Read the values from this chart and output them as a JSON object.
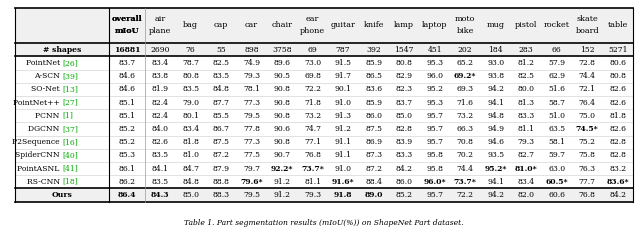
{
  "col_headers_line1": [
    "",
    "overall",
    "air",
    "bag",
    "cap",
    "car",
    "chair",
    "ear",
    "guitar",
    "knife",
    "lamp",
    "laptop",
    "moto",
    "mug",
    "pistol",
    "rocket",
    "skate",
    "table"
  ],
  "col_headers_line2": [
    "",
    "mIoU",
    "plane",
    "",
    "",
    "",
    "",
    "phone",
    "",
    "",
    "",
    "",
    "bike",
    "",
    "",
    "",
    "board",
    ""
  ],
  "subheader": [
    "# shapes",
    "16881",
    "2690",
    "76",
    "55",
    "898",
    "3758",
    "69",
    "787",
    "392",
    "1547",
    "451",
    "202",
    "184",
    "283",
    "66",
    "152",
    "5271"
  ],
  "rows": [
    [
      "PointNet [26]",
      "83.7",
      "83.4",
      "78.7",
      "82.5",
      "74.9",
      "89.6",
      "73.0",
      "91.5",
      "85.9",
      "80.8",
      "95.3",
      "65.2",
      "93.0",
      "81.2",
      "57.9",
      "72.8",
      "80.6"
    ],
    [
      "A-SCN [39]",
      "84.6",
      "83.8",
      "80.8",
      "83.5",
      "79.3",
      "90.5",
      "69.8",
      "91.7",
      "86.5",
      "82.9",
      "96.0",
      "69.2",
      "93.8",
      "82.5",
      "62.9",
      "74.4",
      "80.8"
    ],
    [
      "SO-Net [13]",
      "84.6",
      "81.9",
      "83.5",
      "84.8",
      "78.1",
      "90.8",
      "72.2",
      "90.1",
      "83.6",
      "82.3",
      "95.2",
      "69.3",
      "94.2",
      "80.0",
      "51.6",
      "72.1",
      "82.6"
    ],
    [
      "PointNet++ [27]",
      "85.1",
      "82.4",
      "79.0",
      "87.7",
      "77.3",
      "90.8",
      "71.8",
      "91.0",
      "85.9",
      "83.7",
      "95.3",
      "71.6",
      "94.1",
      "81.3",
      "58.7",
      "76.4",
      "82.6"
    ],
    [
      "PCNN [1]",
      "85.1",
      "82.4",
      "80.1",
      "85.5",
      "79.5",
      "90.8",
      "73.2",
      "91.3",
      "86.0",
      "85.0",
      "95.7",
      "73.2",
      "94.8",
      "83.3",
      "51.0",
      "75.0",
      "81.8"
    ],
    [
      "DGCNN [37]",
      "85.2",
      "84.0",
      "83.4",
      "86.7",
      "77.8",
      "90.6",
      "74.7",
      "91.2",
      "87.5",
      "82.8",
      "95.7",
      "66.3",
      "94.9",
      "81.1",
      "63.5",
      "74.5",
      "82.6"
    ],
    [
      "P2Sequence [16]",
      "85.2",
      "82.6",
      "81.8",
      "87.5",
      "77.3",
      "90.8",
      "77.1",
      "91.1",
      "86.9",
      "83.9",
      "95.7",
      "70.8",
      "94.6",
      "79.3",
      "58.1",
      "75.2",
      "82.8"
    ],
    [
      "SpiderCNN [40]",
      "85.3",
      "83.5",
      "81.0",
      "87.2",
      "77.5",
      "90.7",
      "76.8",
      "91.1",
      "87.3",
      "83.3",
      "95.8",
      "70.2",
      "93.5",
      "82.7",
      "59.7",
      "75.8",
      "82.8"
    ],
    [
      "PointASNL [41]",
      "86.1",
      "84.1",
      "84.7",
      "87.9",
      "79.7",
      "92.2",
      "73.7",
      "91.0",
      "87.2",
      "84.2",
      "95.8",
      "74.4",
      "95.2",
      "81.0",
      "63.0",
      "76.3",
      "83.2"
    ],
    [
      "RS-CNN [18]",
      "86.2",
      "83.5",
      "84.8",
      "88.8",
      "79.6",
      "91.2",
      "81.1",
      "91.6",
      "88.4",
      "86.0",
      "96.0",
      "73.7",
      "94.1",
      "83.4",
      "60.5",
      "77.7",
      "83.6"
    ],
    [
      "Ours",
      "86.4",
      "84.3",
      "85.0",
      "88.3",
      "79.5",
      "91.2",
      "79.3",
      "91.8",
      "89.0",
      "85.2",
      "95.7",
      "72.2",
      "94.2",
      "82.0",
      "60.6",
      "76.8",
      "84.2"
    ]
  ],
  "bold_values": {
    "A-SCN [39]": [
      11
    ],
    "DGCNN [37]": [
      15
    ],
    "PointASNL [41]": [
      5,
      6,
      12,
      13
    ],
    "RS-CNN [18]": [
      4,
      7,
      10,
      11,
      14,
      16
    ],
    "Ours": [
      0,
      1,
      2,
      8,
      9
    ]
  },
  "green_citations": {
    "PointNet [26]": "26",
    "A-SCN [39]": "39",
    "SO-Net [13]": "13",
    "PointNet++ [27]": "27",
    "PCNN [1]": "1",
    "DGCNN [37]": "37",
    "P2Sequence [16]": "16",
    "SpiderCNN [40]": "40",
    "PointASNL [41]": "41",
    "RS-CNN [18]": "18"
  },
  "asterisk_values": {
    "A-SCN [39]": [
      11
    ],
    "DGCNN [37]": [
      15
    ],
    "PointASNL [41]": [
      5,
      6,
      12,
      13
    ],
    "RS-CNN [18]": [
      4,
      7,
      10,
      11,
      14,
      16
    ]
  }
}
